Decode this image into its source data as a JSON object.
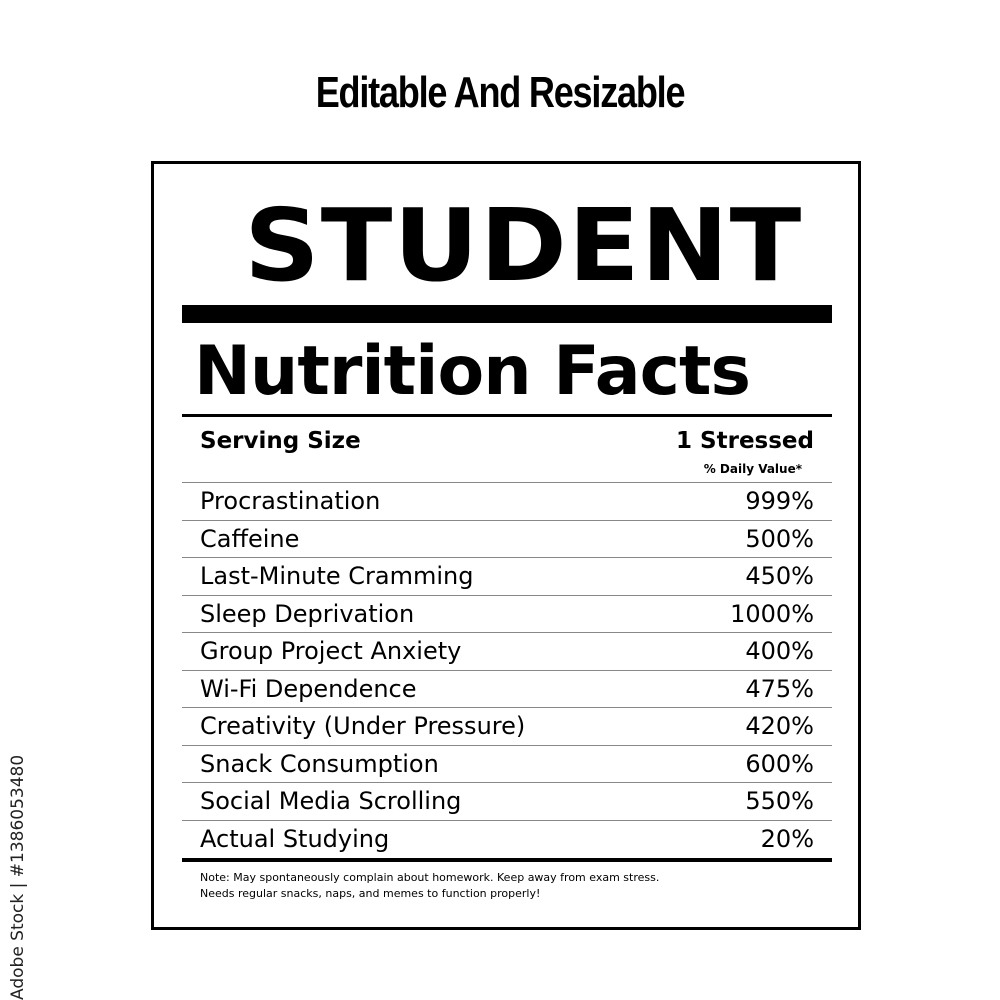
{
  "headline": "Editable And Resizable",
  "label": {
    "title": "STUDENT",
    "subtitle": "Nutrition Facts",
    "serving_size_label": "Serving Size",
    "serving_size_value": "1 Stressed",
    "daily_value_header": "% Daily Value*",
    "rows": [
      {
        "name": "Procrastination",
        "value": "999%"
      },
      {
        "name": "Caffeine",
        "value": "500%"
      },
      {
        "name": "Last-Minute Cramming",
        "value": "450%"
      },
      {
        "name": "Sleep Deprivation",
        "value": "1000%"
      },
      {
        "name": "Group Project Anxiety",
        "value": "400%"
      },
      {
        "name": "Wi-Fi Dependence",
        "value": "475%"
      },
      {
        "name": "Creativity (Under Pressure)",
        "value": "420%"
      },
      {
        "name": "Snack Consumption",
        "value": "600%"
      },
      {
        "name": "Social Media Scrolling",
        "value": "550%"
      },
      {
        "name": "Actual Studying",
        "value": "20%"
      }
    ],
    "note_line1": "Note: May spontaneously complain about homework. Keep away from exam stress.",
    "note_line2": "Needs regular snacks, naps, and memes to function properly!"
  },
  "watermark": "Adobe Stock | #1386053480"
}
